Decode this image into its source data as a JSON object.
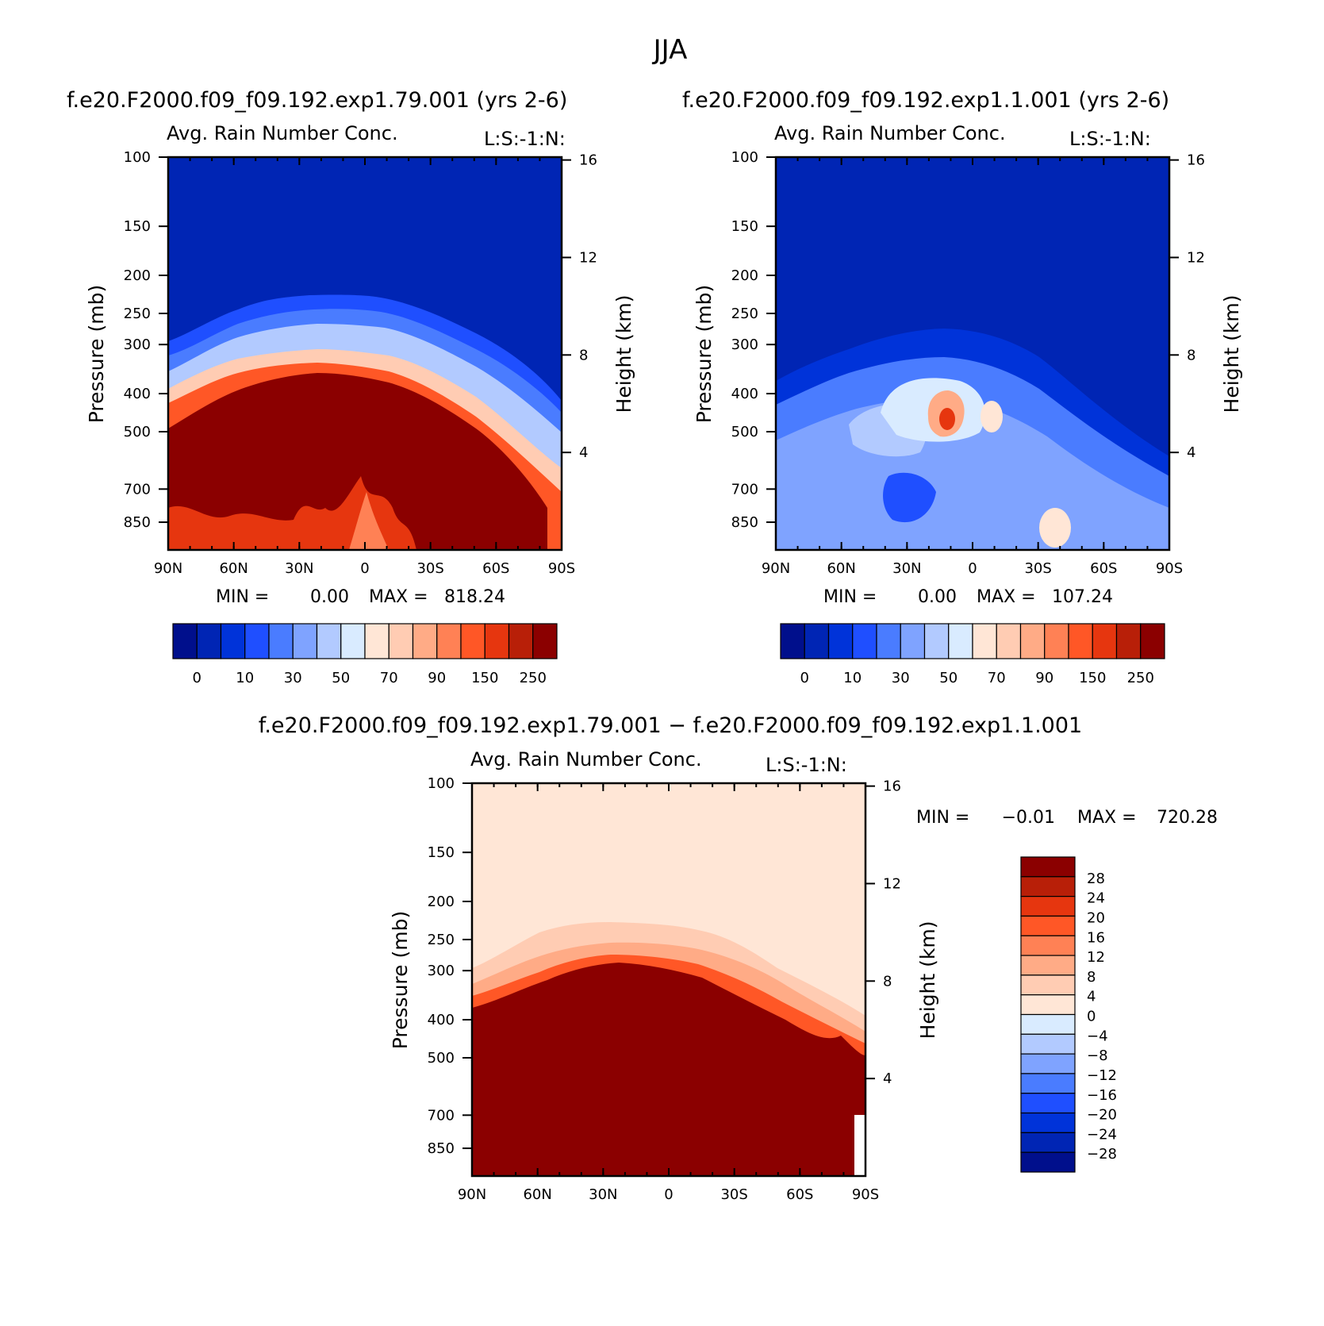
{
  "figure": {
    "title": "JJA",
    "diff_title": "f.e20.F2000.f09_f09.192.exp1.79.001 − f.e20.F2000.f09_f09.192.exp1.1.001"
  },
  "colors": {
    "abs_scale": [
      "#000f8c",
      "#0025b4",
      "#0033d9",
      "#1f4fff",
      "#4a7cff",
      "#7fa3ff",
      "#b2caff",
      "#d9ebff",
      "#ffe6d6",
      "#ffccb3",
      "#ffab86",
      "#ff8155",
      "#ff5726",
      "#e6360f",
      "#b81f08",
      "#8b0000"
    ],
    "diff_scale": [
      "#000f8c",
      "#0025b4",
      "#0033d9",
      "#1f4fff",
      "#4a7cff",
      "#7fa3ff",
      "#b2caff",
      "#d9ebff",
      "#ffe6d6",
      "#ffccb3",
      "#ffab86",
      "#ff8155",
      "#ff5726",
      "#e6360f",
      "#b81f08",
      "#8b0000"
    ]
  },
  "chart_data": [
    {
      "id": "exp79",
      "type": "heatmap",
      "case_title": "f.e20.F2000.f09_f09.192.exp1.79.001 (yrs 2-6)",
      "title": "Avg. Rain Number Conc.",
      "level_label": "L:S:-1:N:",
      "xlabel": "",
      "ylabel": "Pressure (mb)",
      "y2label": "Height (km)",
      "x_ticks": [
        "90N",
        "60N",
        "30N",
        "0",
        "30S",
        "60S",
        "90S"
      ],
      "xlim": [
        90,
        -90
      ],
      "y_ticks": [
        "100",
        "150",
        "200",
        "250",
        "300",
        "400",
        "500",
        "700",
        "850"
      ],
      "y_tick_values": [
        100,
        150,
        200,
        250,
        300,
        400,
        500,
        700,
        850
      ],
      "ylim": [
        100,
        1000
      ],
      "y_scale": "log",
      "y2_ticks": [
        "16",
        "12",
        "8",
        "4"
      ],
      "y2_tick_values": [
        16,
        12,
        8,
        4
      ],
      "min_label": "MIN =",
      "min_value": "0.00",
      "max_label": "MAX =",
      "max_value": "818.24",
      "colorbar": {
        "orientation": "horizontal",
        "labels": [
          "0",
          "10",
          "30",
          "50",
          "70",
          "90",
          "150",
          "250"
        ],
        "levels": [
          0,
          5,
          10,
          20,
          30,
          40,
          50,
          60,
          70,
          80,
          90,
          100,
          150,
          200,
          250
        ]
      },
      "feature": "high concentrations (>250) fill the lower troposphere below ~350 mb across most latitudes; sharp transition to low values above ~300 mb"
    },
    {
      "id": "exp1",
      "type": "heatmap",
      "case_title": "f.e20.F2000.f09_f09.192.exp1.1.001 (yrs 2-6)",
      "title": "Avg. Rain Number Conc.",
      "level_label": "L:S:-1:N:",
      "xlabel": "",
      "ylabel": "Pressure (mb)",
      "y2label": "Height (km)",
      "x_ticks": [
        "90N",
        "60N",
        "30N",
        "0",
        "30S",
        "60S",
        "90S"
      ],
      "xlim": [
        90,
        -90
      ],
      "y_ticks": [
        "100",
        "150",
        "200",
        "250",
        "300",
        "400",
        "500",
        "700",
        "850"
      ],
      "y_tick_values": [
        100,
        150,
        200,
        250,
        300,
        400,
        500,
        700,
        850
      ],
      "ylim": [
        100,
        1000
      ],
      "y_scale": "log",
      "y2_ticks": [
        "16",
        "12",
        "8",
        "4"
      ],
      "y2_tick_values": [
        16,
        12,
        8,
        4
      ],
      "min_label": "MIN =",
      "min_value": "0.00",
      "max_label": "MAX =",
      "max_value": "107.24",
      "colorbar": {
        "orientation": "horizontal",
        "labels": [
          "0",
          "10",
          "30",
          "50",
          "70",
          "90",
          "150",
          "250"
        ],
        "levels": [
          0,
          5,
          10,
          20,
          30,
          40,
          50,
          60,
          70,
          80,
          90,
          100,
          150,
          200,
          250
        ]
      },
      "feature": "mostly low concentrations (<50); isolated maximum (~70-100) near 10N at ~430 mb"
    },
    {
      "id": "diff",
      "type": "heatmap",
      "case_title": "",
      "title": "Avg. Rain Number Conc.",
      "level_label": "L:S:-1:N:",
      "xlabel": "",
      "ylabel": "Pressure (mb)",
      "y2label": "Height (km)",
      "x_ticks": [
        "90N",
        "60N",
        "30N",
        "0",
        "30S",
        "60S",
        "90S"
      ],
      "xlim": [
        90,
        -90
      ],
      "y_ticks": [
        "100",
        "150",
        "200",
        "250",
        "300",
        "400",
        "500",
        "700",
        "850"
      ],
      "y_tick_values": [
        100,
        150,
        200,
        250,
        300,
        400,
        500,
        700,
        850
      ],
      "ylim": [
        100,
        1000
      ],
      "y_scale": "log",
      "y2_ticks": [
        "16",
        "12",
        "8",
        "4"
      ],
      "y2_tick_values": [
        16,
        12,
        8,
        4
      ],
      "min_label": "MIN =",
      "min_value": "−0.01",
      "max_label": "MAX =",
      "max_value": "720.28",
      "colorbar": {
        "orientation": "vertical",
        "labels": [
          "28",
          "24",
          "20",
          "16",
          "12",
          "8",
          "4",
          "0",
          "−4",
          "−8",
          "−12",
          "−16",
          "−20",
          "−24",
          "−28"
        ],
        "levels": [
          28,
          24,
          20,
          16,
          12,
          8,
          4,
          0,
          -4,
          -8,
          -12,
          -16,
          -20,
          -24,
          -28
        ]
      },
      "feature": "positive differences (>28) throughout the lower troposphere below ~300 mb; near-zero positive values aloft"
    }
  ]
}
